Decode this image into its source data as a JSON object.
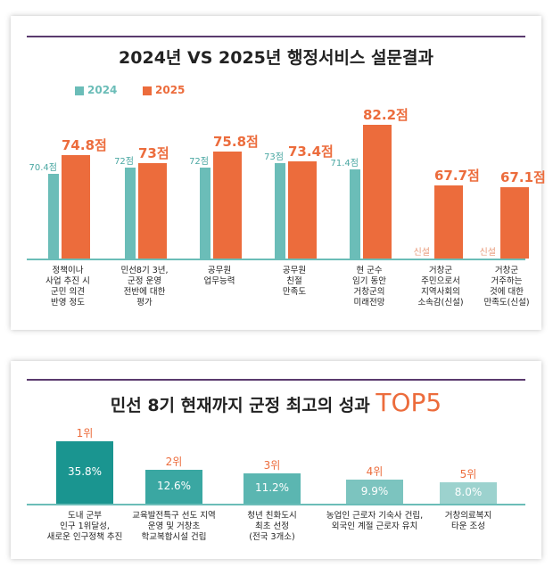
{
  "chart_data": [
    {
      "type": "bar",
      "title": "2024년 VS 2025년 행정서비스 설문결과",
      "legend": [
        "2024",
        "2025"
      ],
      "legend_placement": "top-left",
      "colors": {
        "2024": "#6bbdb8",
        "2025": "#ec6c3c",
        "new_label": "#e89a7a"
      },
      "categories": [
        "정책이나\n사업 추진 시\n군민 의견\n반영 정도",
        "민선8기 3년,\n군정 운영\n전반에 대한\n평가",
        "공무원\n업무능력",
        "공무원\n친절\n만족도",
        "현 군수\n임기 동안\n거창군의\n미래전망",
        "거창군\n주민으로서\n지역사회의\n소속감(신설)",
        "거창군\n거주하는\n것에 대한\n만족도(신설)"
      ],
      "series": [
        {
          "name": "2024",
          "values": [
            70.4,
            72,
            72,
            73,
            71.4,
            null,
            null
          ],
          "labels": [
            "70.4점",
            "72점",
            "72점",
            "73점",
            "71.4점",
            "신설",
            "신설"
          ]
        },
        {
          "name": "2025",
          "values": [
            74.8,
            73,
            75.8,
            73.4,
            82.2,
            67.7,
            67.1
          ],
          "labels": [
            "74.8점",
            "73점",
            "75.8점",
            "73.4점",
            "82.2점",
            "67.7점",
            "67.1점"
          ]
        }
      ]
    },
    {
      "type": "bar",
      "title": "민선 8기 현재까지 군정 최고의 성과",
      "title_accent": "TOP5",
      "colors": [
        "#1a9590",
        "#3aa7a2",
        "#5bb6b1",
        "#7cc4bf",
        "#9cd2ce"
      ],
      "accent": "#ec6c3c",
      "ranks": [
        "1위",
        "2위",
        "3위",
        "4위",
        "5위"
      ],
      "categories": [
        "도내 군부\n인구 1위달성,\n새로운 인구정책 추진",
        "교육발전특구 선도 지역\n운영 및 거창초\n학교복합시설 건립",
        "청년 친화도시\n최초 선정\n(전국 3개소)",
        "농업인 근로자 기숙사 건립,\n외국인 계절 근로자 유치",
        "거창의료복지\n타운 조성"
      ],
      "values": [
        35.8,
        12.6,
        11.2,
        9.9,
        8.0
      ],
      "labels": [
        "35.8%",
        "12.6%",
        "11.2%",
        "9.9%",
        "8.0%"
      ]
    }
  ]
}
